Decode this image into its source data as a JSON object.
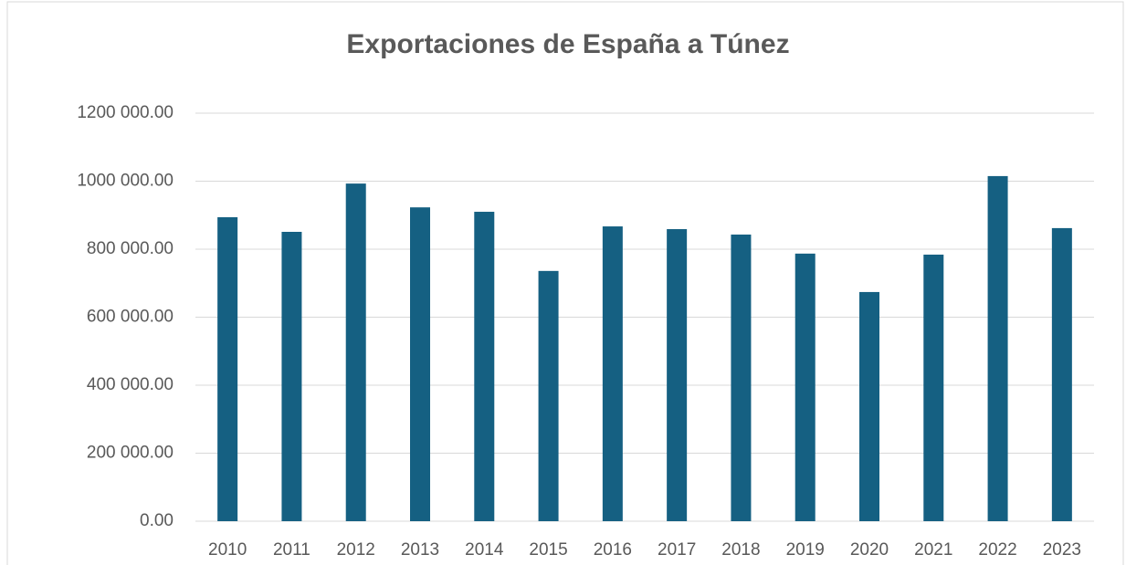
{
  "chart_data": {
    "type": "bar",
    "title": "Exportaciones de  España  a Túnez",
    "categories": [
      "2010",
      "2011",
      "2012",
      "2013",
      "2014",
      "2015",
      "2016",
      "2017",
      "2018",
      "2019",
      "2020",
      "2021",
      "2022",
      "2023"
    ],
    "values": [
      894000,
      851000,
      993000,
      923000,
      910000,
      736000,
      867000,
      859000,
      843000,
      787000,
      674000,
      784000,
      1015000,
      862000
    ],
    "color": "#156082",
    "ylim": [
      0,
      1200000
    ],
    "yticks": [
      {
        "value": 0,
        "label": "0.00"
      },
      {
        "value": 200000,
        "label": "200 000.00"
      },
      {
        "value": 400000,
        "label": "400 000.00"
      },
      {
        "value": 600000,
        "label": "600 000.00"
      },
      {
        "value": 800000,
        "label": "800 000.00"
      },
      {
        "value": 1000000,
        "label": "1000 000.00"
      },
      {
        "value": 1200000,
        "label": "1200 000.00"
      }
    ],
    "grid": true
  }
}
